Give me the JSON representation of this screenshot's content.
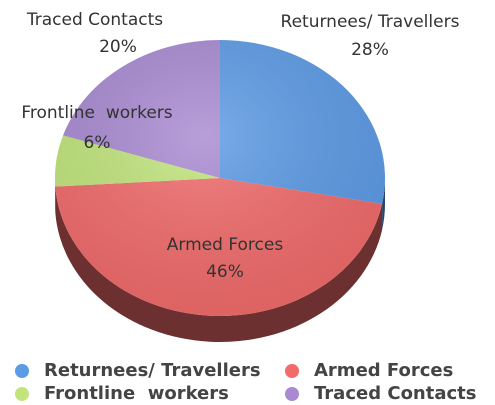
{
  "chart_data": {
    "type": "pie",
    "categories": [
      "Returnees/ Travellers",
      "Armed Forces",
      "Frontline  workers",
      "Traced Contacts"
    ],
    "values": [
      28,
      46,
      6,
      20
    ],
    "value_labels": [
      "28%",
      "46%",
      "6%",
      "20%"
    ],
    "colors": [
      "#5c9be6",
      "#f26b6b",
      "#c1e57c",
      "#a98ad2"
    ],
    "legend": "bottom"
  }
}
